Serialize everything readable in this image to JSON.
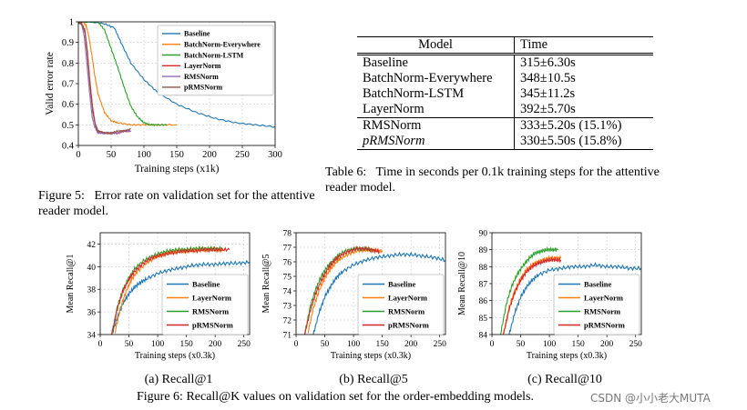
{
  "figure5": {
    "caption_label": "Figure 5:",
    "caption_text": "Error rate on validation set for the attentive reader model.",
    "chart_data": {
      "type": "line",
      "xlabel": "Training steps (x1k)",
      "ylabel": "Valid error rate",
      "xlim": [
        0,
        300
      ],
      "ylim": [
        0.4,
        1.0
      ],
      "xticks": [
        0,
        50,
        100,
        150,
        200,
        250,
        300
      ],
      "yticks": [
        0.4,
        0.5,
        0.6,
        0.7,
        0.8,
        0.9,
        1.0
      ],
      "legend_position": "top-right",
      "series": [
        {
          "name": "Baseline",
          "color": "#1f77b4",
          "x": [
            0,
            20,
            40,
            55,
            65,
            80,
            100,
            120,
            150,
            180,
            210,
            240,
            270,
            300
          ],
          "y": [
            1.0,
            1.0,
            0.99,
            0.97,
            0.9,
            0.8,
            0.72,
            0.66,
            0.6,
            0.56,
            0.53,
            0.51,
            0.5,
            0.49
          ]
        },
        {
          "name": "BatchNorm-Everywhere",
          "color": "#ff7f0e",
          "x": [
            0,
            8,
            12,
            16,
            20,
            25,
            30,
            40,
            50,
            60,
            80,
            100,
            120,
            150
          ],
          "y": [
            1.0,
            1.0,
            0.98,
            0.93,
            0.85,
            0.74,
            0.65,
            0.56,
            0.52,
            0.51,
            0.5,
            0.5,
            0.5,
            0.5
          ]
        },
        {
          "name": "BatchNorm-LSTM",
          "color": "#2ca02c",
          "x": [
            0,
            30,
            40,
            50,
            60,
            70,
            80,
            90,
            100,
            110,
            120,
            135
          ],
          "y": [
            1.0,
            1.0,
            0.96,
            0.87,
            0.78,
            0.68,
            0.59,
            0.54,
            0.51,
            0.5,
            0.5,
            0.5
          ]
        },
        {
          "name": "LayerNorm",
          "color": "#d62728",
          "x": [
            0,
            5,
            10,
            14,
            18,
            22,
            26,
            30,
            40,
            50,
            60,
            70,
            80
          ],
          "y": [
            1.0,
            0.99,
            0.96,
            0.85,
            0.7,
            0.58,
            0.5,
            0.47,
            0.46,
            0.46,
            0.46,
            0.47,
            0.47
          ]
        },
        {
          "name": "RMSNorm",
          "color": "#9467bd",
          "x": [
            0,
            5,
            9,
            13,
            17,
            21,
            25,
            30,
            40,
            50,
            60,
            70,
            80
          ],
          "y": [
            1.0,
            0.99,
            0.93,
            0.8,
            0.66,
            0.54,
            0.49,
            0.46,
            0.46,
            0.46,
            0.46,
            0.47,
            0.47
          ]
        },
        {
          "name": "pRMSNorm",
          "color": "#8c564b",
          "x": [
            0,
            5,
            10,
            14,
            18,
            22,
            26,
            30,
            40,
            50,
            60,
            70,
            80
          ],
          "y": [
            1.0,
            0.99,
            0.95,
            0.83,
            0.68,
            0.56,
            0.5,
            0.47,
            0.46,
            0.46,
            0.47,
            0.47,
            0.48
          ]
        }
      ]
    }
  },
  "table6": {
    "headers": [
      "Model",
      "Time"
    ],
    "rows": [
      [
        "Baseline",
        "315±6.30s"
      ],
      [
        "BatchNorm-Everywhere",
        "348±10.5s"
      ],
      [
        "BatchNorm-LSTM",
        "345±11.2s"
      ],
      [
        "LayerNorm",
        "392±5.70s"
      ],
      [
        "RMSNorm",
        "333±5.20s (15.1%)"
      ],
      [
        "pRMSNorm",
        "330±5.50s (15.8%)"
      ]
    ],
    "caption_label": "Table 6:",
    "caption_text": "Time in seconds per 0.1k training steps for the attentive reader model."
  },
  "figure6": {
    "caption": "Figure 6: Recall@K values on validation set for the order-embedding models.",
    "watermark": "CSDN @小小老大MUTA",
    "chart_data": [
      {
        "type": "line",
        "title": "Recall@1",
        "sublabel": "(a) Recall@1",
        "xlabel": "Training steps (x0.3k)",
        "ylabel": "Mean Recall@1",
        "xlim": [
          0,
          260
        ],
        "ylim": [
          34,
          43
        ],
        "xticks": [
          0,
          50,
          100,
          150,
          200,
          250
        ],
        "yticks": [
          34,
          36,
          38,
          40,
          42
        ],
        "legend_position": "bottom-right",
        "series": [
          {
            "name": "Baseline",
            "color": "#1f77b4",
            "x": [
              20,
              30,
              40,
              50,
              60,
              70,
              80,
              100,
              120,
              140,
              160,
              180,
              200,
              220,
              240,
              260
            ],
            "y": [
              34.0,
              35.5,
              36.8,
              37.6,
              38.2,
              38.6,
              38.9,
              39.4,
              39.7,
              39.9,
              40.1,
              40.2,
              40.2,
              40.3,
              40.3,
              40.4
            ]
          },
          {
            "name": "LayerNorm",
            "color": "#ff7f0e",
            "x": [
              25,
              35,
              45,
              55,
              65,
              80,
              95,
              110,
              125,
              140,
              155,
              170,
              185,
              200,
              215
            ],
            "y": [
              34.0,
              36.3,
              37.8,
              38.9,
              39.6,
              40.3,
              40.8,
              41.1,
              41.3,
              41.4,
              41.4,
              41.5,
              41.5,
              41.5,
              41.5
            ]
          },
          {
            "name": "RMSNorm",
            "color": "#2ca02c",
            "x": [
              20,
              30,
              40,
              50,
              60,
              75,
              90,
              105,
              120,
              135,
              150,
              165,
              180,
              195,
              210
            ],
            "y": [
              34.0,
              36.5,
              38.0,
              39.0,
              39.8,
              40.5,
              40.9,
              41.2,
              41.4,
              41.5,
              41.5,
              41.6,
              41.6,
              41.6,
              41.6
            ]
          },
          {
            "name": "pRMSNorm",
            "color": "#d62728",
            "x": [
              20,
              30,
              40,
              50,
              60,
              75,
              90,
              105,
              120,
              135,
              150,
              165,
              180,
              195,
              210,
              225
            ],
            "y": [
              34.0,
              36.3,
              37.9,
              38.9,
              39.6,
              40.3,
              40.8,
              41.0,
              41.2,
              41.3,
              41.4,
              41.4,
              41.5,
              41.5,
              41.5,
              41.5
            ]
          }
        ]
      },
      {
        "type": "line",
        "title": "Recall@5",
        "sublabel": "(b) Recall@5",
        "xlabel": "Training steps (x0.3k)",
        "ylabel": "Mean Recall@5",
        "xlim": [
          0,
          260
        ],
        "ylim": [
          71,
          78
        ],
        "xticks": [
          0,
          50,
          100,
          150,
          200,
          250
        ],
        "yticks": [
          71,
          72,
          73,
          74,
          75,
          76,
          77,
          78
        ],
        "legend_position": "bottom-right",
        "series": [
          {
            "name": "Baseline",
            "color": "#1f77b4",
            "x": [
              30,
              40,
              50,
              60,
              70,
              80,
              100,
              120,
              140,
              160,
              180,
              200,
              220,
              240,
              260
            ],
            "y": [
              71.0,
              72.5,
              73.6,
              74.3,
              74.9,
              75.3,
              75.8,
              76.1,
              76.3,
              76.4,
              76.5,
              76.5,
              76.4,
              76.3,
              76.1
            ]
          },
          {
            "name": "LayerNorm",
            "color": "#ff7f0e",
            "x": [
              20,
              30,
              40,
              50,
              60,
              70,
              80,
              95,
              110,
              125,
              140,
              150
            ],
            "y": [
              71.0,
              72.8,
              74.0,
              74.9,
              75.5,
              76.0,
              76.3,
              76.6,
              76.8,
              76.8,
              76.8,
              76.7
            ]
          },
          {
            "name": "RMSNorm",
            "color": "#2ca02c",
            "x": [
              15,
              25,
              35,
              45,
              55,
              65,
              75,
              90,
              105,
              120,
              135
            ],
            "y": [
              71.0,
              73.0,
              74.2,
              75.1,
              75.7,
              76.1,
              76.5,
              76.8,
              76.9,
              76.9,
              76.8
            ]
          },
          {
            "name": "pRMSNorm",
            "color": "#d62728",
            "x": [
              15,
              25,
              35,
              45,
              55,
              65,
              75,
              90,
              105,
              120,
              135,
              145
            ],
            "y": [
              71.0,
              72.7,
              73.9,
              74.8,
              75.5,
              76.0,
              76.4,
              76.7,
              76.9,
              76.9,
              76.8,
              76.7
            ]
          }
        ]
      },
      {
        "type": "line",
        "title": "Recall@10",
        "sublabel": "(c) Recall@10",
        "xlabel": "Training steps (x0.3k)",
        "ylabel": "Mean Recall@10",
        "xlim": [
          0,
          260
        ],
        "ylim": [
          84,
          90
        ],
        "xticks": [
          0,
          50,
          100,
          150,
          200,
          250
        ],
        "yticks": [
          84,
          85,
          86,
          87,
          88,
          89,
          90
        ],
        "legend_position": "bottom-right",
        "series": [
          {
            "name": "Baseline",
            "color": "#1f77b4",
            "x": [
              30,
              40,
              50,
              60,
              70,
              80,
              100,
              120,
              140,
              160,
              180,
              200,
              220,
              240,
              260
            ],
            "y": [
              84.0,
              85.3,
              86.2,
              86.8,
              87.2,
              87.5,
              87.8,
              87.9,
              88.0,
              88.0,
              88.1,
              88.0,
              88.0,
              87.9,
              87.9
            ]
          },
          {
            "name": "LayerNorm",
            "color": "#ff7f0e",
            "x": [
              20,
              30,
              40,
              50,
              60,
              70,
              80,
              90,
              100,
              110,
              120
            ],
            "y": [
              84.0,
              85.6,
              86.6,
              87.3,
              87.8,
              88.1,
              88.3,
              88.4,
              88.5,
              88.5,
              88.5
            ]
          },
          {
            "name": "RMSNorm",
            "color": "#2ca02c",
            "x": [
              15,
              25,
              35,
              45,
              55,
              65,
              75,
              85,
              95,
              105,
              115
            ],
            "y": [
              84.0,
              85.8,
              86.9,
              87.6,
              88.1,
              88.5,
              88.8,
              88.9,
              89.0,
              89.0,
              89.0
            ]
          },
          {
            "name": "pRMSNorm",
            "color": "#d62728",
            "x": [
              20,
              30,
              40,
              50,
              60,
              70,
              80,
              90,
              100,
              110,
              120
            ],
            "y": [
              84.0,
              85.5,
              86.5,
              87.2,
              87.7,
              88.0,
              88.2,
              88.3,
              88.4,
              88.4,
              88.4
            ]
          }
        ]
      }
    ]
  }
}
